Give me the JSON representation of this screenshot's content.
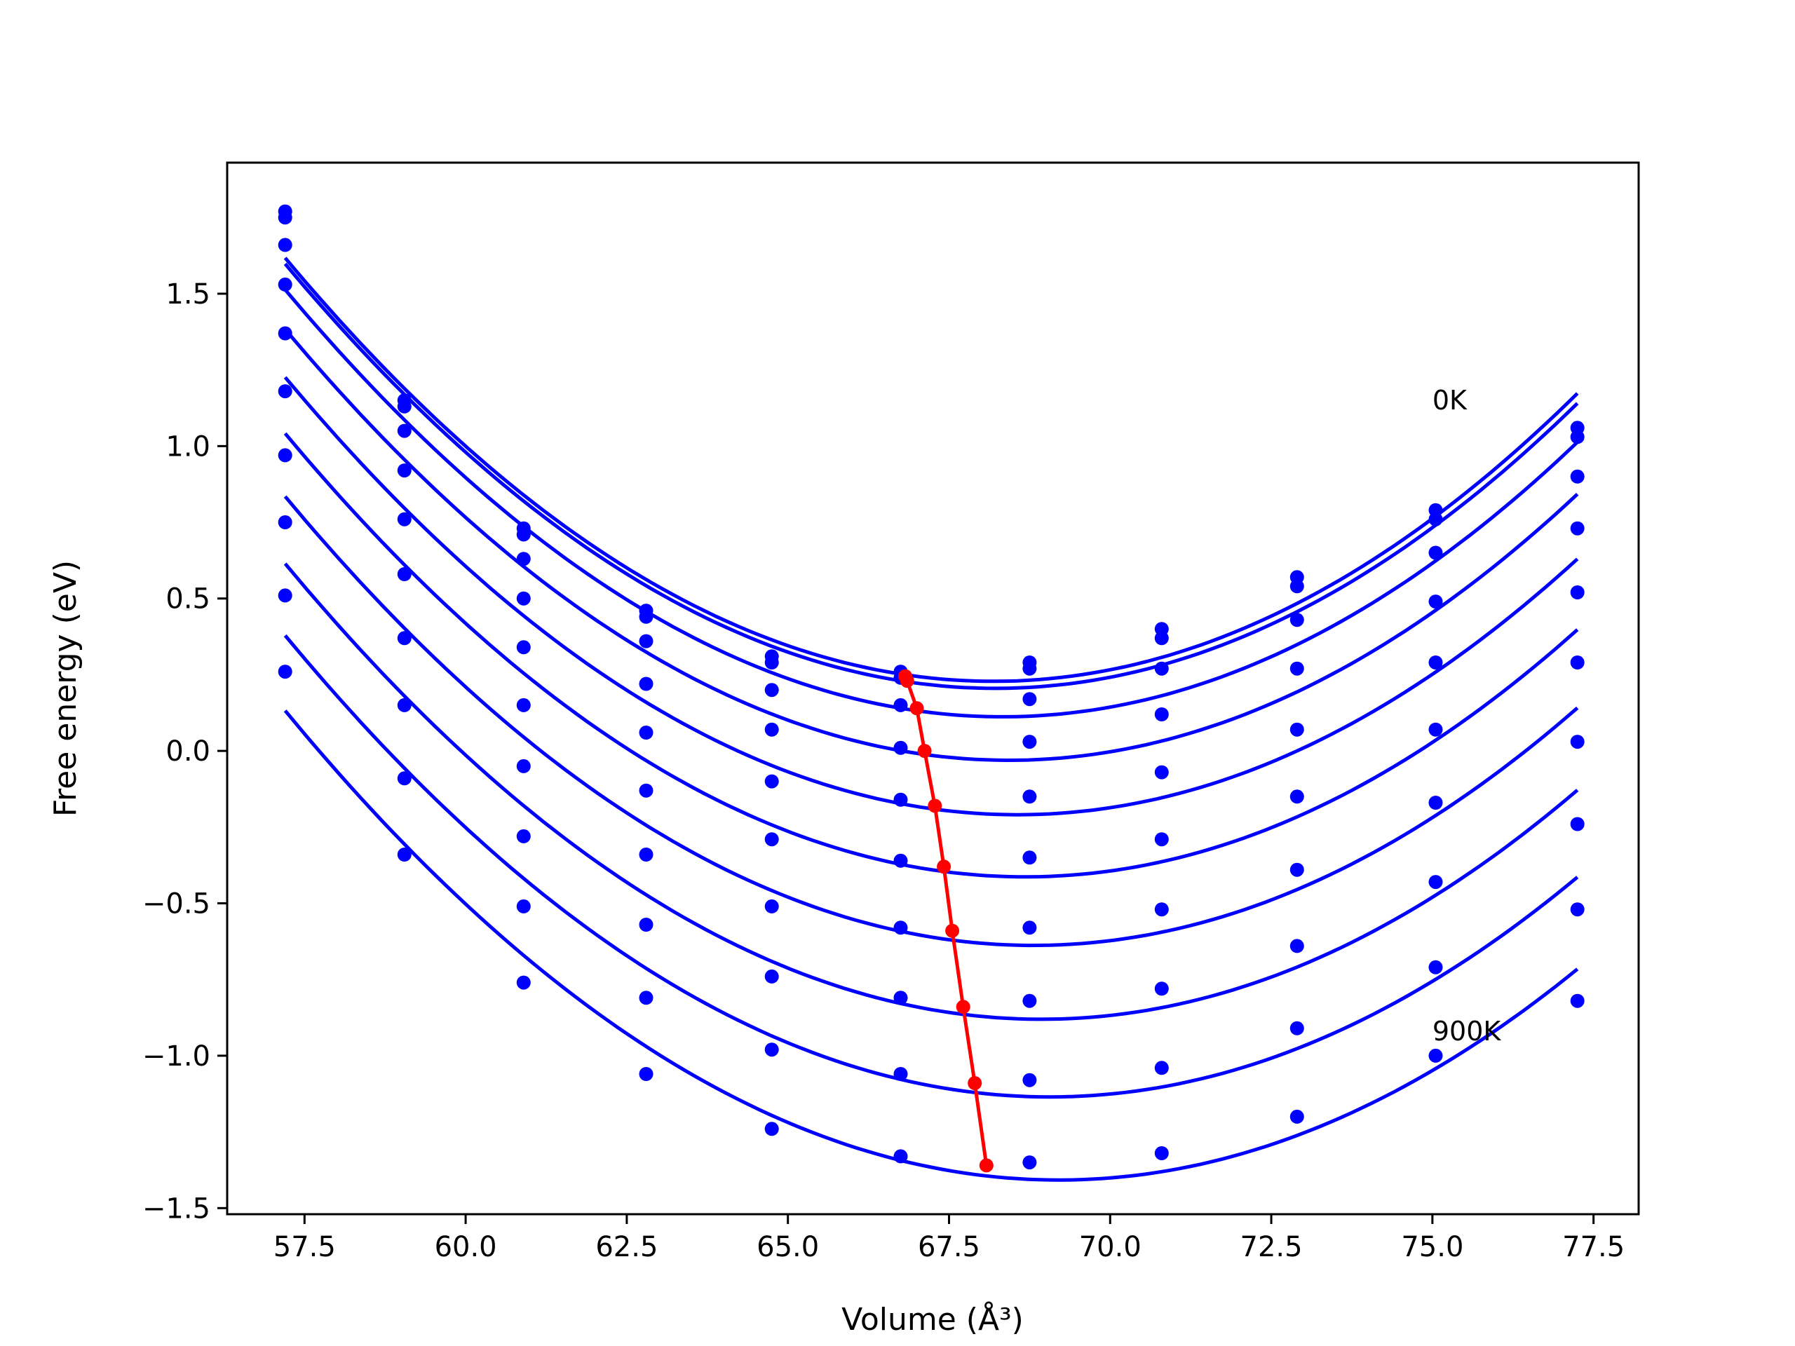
{
  "chart_data": {
    "type": "line",
    "title": "",
    "xlabel": "Volume (Å³)",
    "ylabel": "Free energy (eV)",
    "xlim": [
      56.3,
      78.2
    ],
    "ylim": [
      -1.52,
      1.93
    ],
    "xticks": [
      57.5,
      60.0,
      62.5,
      65.0,
      67.5,
      70.0,
      72.5,
      75.0,
      77.5
    ],
    "xtick_labels": [
      "57.5",
      "60.0",
      "62.5",
      "65.0",
      "67.5",
      "70.0",
      "72.5",
      "75.0",
      "77.5"
    ],
    "yticks": [
      -1.5,
      -1.0,
      -0.5,
      0.0,
      0.5,
      1.0,
      1.5
    ],
    "ytick_labels": [
      "−1.5",
      "−1.0",
      "−0.5",
      "0.0",
      "0.5",
      "1.0",
      "1.5"
    ],
    "grid": false,
    "series_color": "#0000ff",
    "minima_color": "#ff0000",
    "x": [
      57.2,
      59.05,
      60.9,
      62.8,
      64.75,
      66.75,
      68.75,
      70.8,
      72.9,
      75.05,
      77.25
    ],
    "series": [
      {
        "values": [
          1.77,
          1.15,
          0.73,
          0.46,
          0.31,
          0.26,
          0.29,
          0.4,
          0.57,
          0.79,
          1.06
        ]
      },
      {
        "values": [
          1.75,
          1.13,
          0.71,
          0.44,
          0.29,
          0.24,
          0.27,
          0.37,
          0.54,
          0.76,
          1.03
        ]
      },
      {
        "values": [
          1.66,
          1.05,
          0.63,
          0.36,
          0.2,
          0.15,
          0.17,
          0.27,
          0.43,
          0.65,
          0.9
        ]
      },
      {
        "values": [
          1.53,
          0.92,
          0.5,
          0.22,
          0.07,
          0.01,
          0.03,
          0.12,
          0.27,
          0.49,
          0.73
        ]
      },
      {
        "values": [
          1.37,
          0.76,
          0.34,
          0.06,
          -0.1,
          -0.16,
          -0.15,
          -0.07,
          0.07,
          0.29,
          0.52
        ]
      },
      {
        "values": [
          1.18,
          0.58,
          0.15,
          -0.13,
          -0.29,
          -0.36,
          -0.35,
          -0.29,
          -0.15,
          0.07,
          0.29
        ]
      },
      {
        "values": [
          0.97,
          0.37,
          -0.05,
          -0.34,
          -0.51,
          -0.58,
          -0.58,
          -0.52,
          -0.39,
          -0.17,
          0.03
        ]
      },
      {
        "values": [
          0.75,
          0.15,
          -0.28,
          -0.57,
          -0.74,
          -0.81,
          -0.82,
          -0.78,
          -0.64,
          -0.43,
          -0.24
        ]
      },
      {
        "values": [
          0.51,
          -0.09,
          -0.51,
          -0.81,
          -0.98,
          -1.06,
          -1.08,
          -1.04,
          -0.91,
          -0.71,
          -0.52
        ]
      },
      {
        "values": [
          0.26,
          -0.34,
          -0.76,
          -1.06,
          -1.24,
          -1.33,
          -1.35,
          -1.32,
          -1.2,
          -1.0,
          -0.82
        ]
      }
    ],
    "minima": {
      "x": [
        66.82,
        66.85,
        67.0,
        67.12,
        67.28,
        67.42,
        67.55,
        67.72,
        67.9,
        68.08
      ],
      "y": [
        0.245,
        0.23,
        0.14,
        0.0,
        -0.18,
        -0.38,
        -0.59,
        -0.84,
        -1.09,
        -1.36
      ]
    },
    "annotations": [
      {
        "text": "0K",
        "x": 75.0,
        "y": 1.12
      },
      {
        "text": "900K",
        "x": 75.0,
        "y": -0.95
      }
    ]
  }
}
